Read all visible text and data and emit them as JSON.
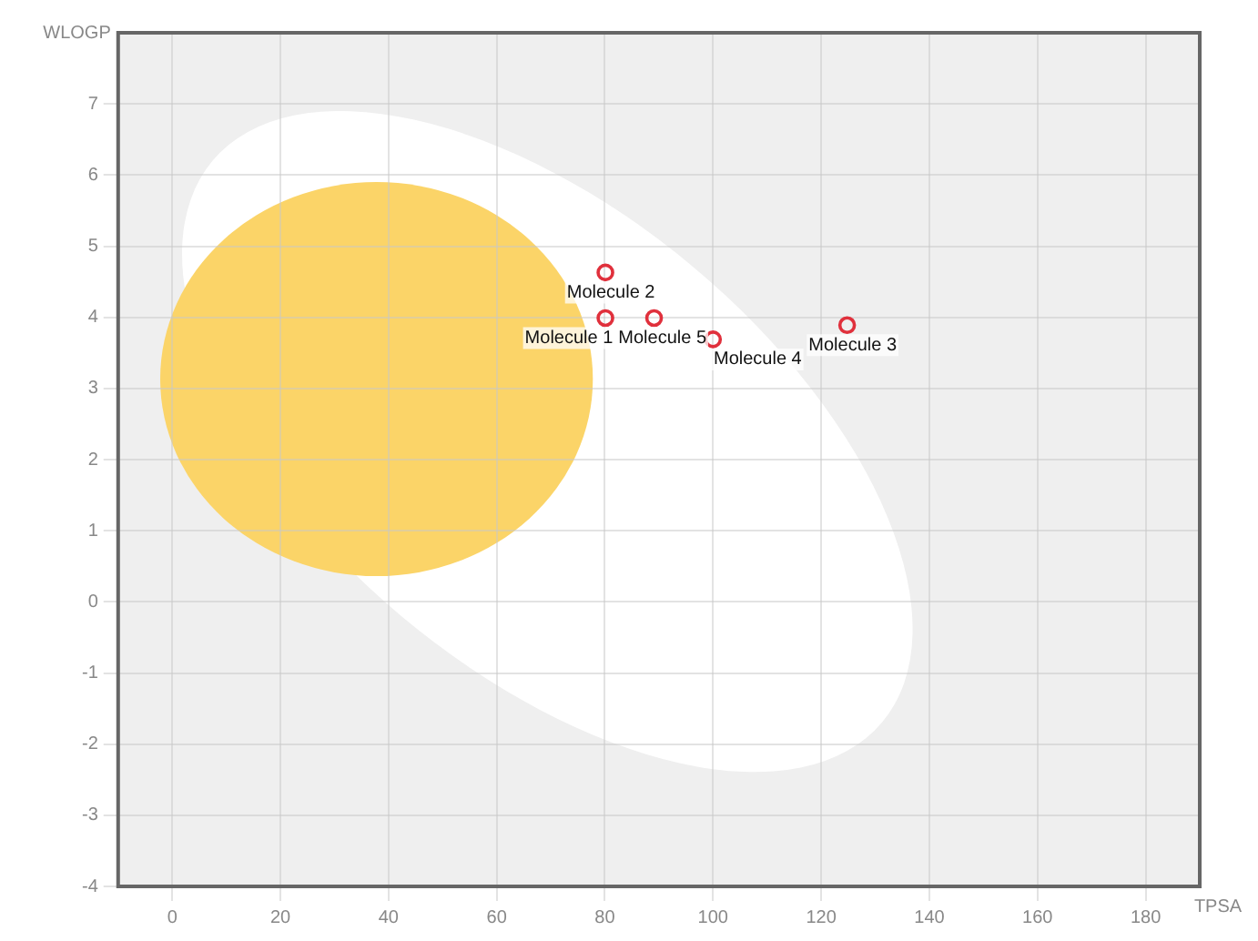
{
  "chart_data": {
    "type": "scatter",
    "xlabel": "TPSA",
    "ylabel": "WLOGP",
    "x": [
      80.1,
      80.1,
      124.8,
      100,
      89.1
    ],
    "series": [
      {
        "color": "#e0303c",
        "values": [
          3.99,
          4.63,
          3.89,
          3.69,
          3.99
        ]
      }
    ],
    "annotations": [
      {
        "text": "Molecule 1",
        "x": 80.1,
        "y": 3.99
      },
      {
        "text": "Molecule 2",
        "x": 80.1,
        "y": 4.63
      },
      {
        "text": "Molecule 3",
        "x": 124.8,
        "y": 3.89
      },
      {
        "text": "Molecule 4",
        "x": 100,
        "y": 3.69
      },
      {
        "text": "Molecule 5",
        "x": 89.1,
        "y": 3.99
      }
    ],
    "xlim": [
      -10,
      190
    ],
    "xticks": [
      0,
      20,
      40,
      60,
      80,
      100,
      120,
      140,
      160,
      180
    ],
    "ylim": [
      -4,
      8
    ],
    "yticks": [
      -4,
      -3,
      -2,
      -1,
      0,
      1,
      2,
      3,
      4,
      5,
      6,
      7
    ],
    "grid": true,
    "legend": false,
    "marker": "circle"
  }
}
